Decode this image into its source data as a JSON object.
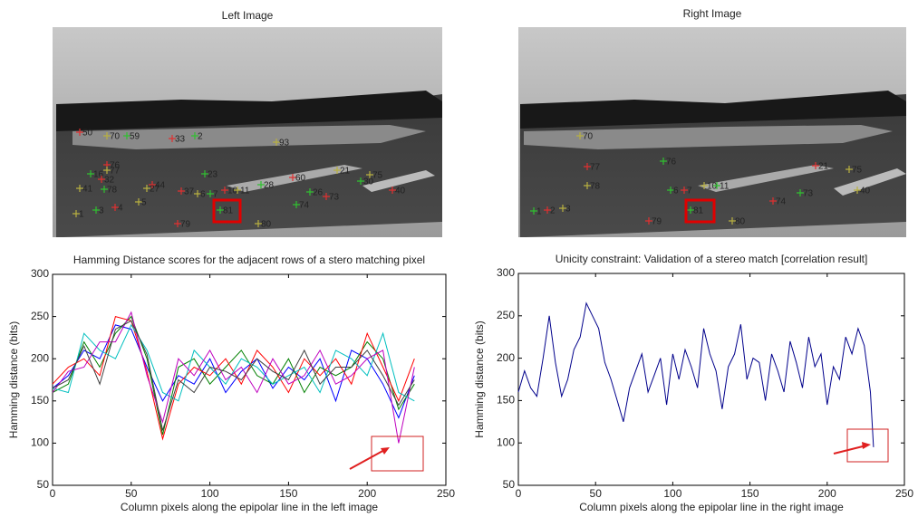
{
  "images": [
    {
      "title": "Left Image",
      "markers": [
        "50",
        "70",
        "59",
        "33",
        "93",
        "2",
        "76",
        "77",
        "16",
        "32",
        "41",
        "78",
        "44",
        "27",
        "23",
        "37",
        "6",
        "7",
        "10",
        "11",
        "28",
        "60",
        "21",
        "26",
        "73",
        "75",
        "30",
        "40",
        "1",
        "3",
        "4",
        "5",
        "81",
        "79",
        "80",
        "74"
      ]
    },
    {
      "title": "Right Image",
      "markers": [
        "70",
        "76",
        "77",
        "78",
        "6",
        "7",
        "10",
        "11",
        "21",
        "75",
        "73",
        "74",
        "40",
        "1",
        "2",
        "3",
        "81",
        "79",
        "80"
      ]
    }
  ],
  "chart_data": [
    {
      "type": "line",
      "title": "Hamming Distance scores for the adjacent rows of a stero matching pixel",
      "xlabel": "Column pixels along the epipolar line in the left image",
      "ylabel": "Hamming distance (bits)",
      "x": [
        0,
        10,
        20,
        30,
        40,
        50,
        60,
        70,
        80,
        90,
        100,
        110,
        120,
        130,
        140,
        150,
        160,
        170,
        180,
        190,
        200,
        210,
        220,
        230
      ],
      "series": [
        {
          "color": "#0000ff",
          "values": [
            165,
            180,
            210,
            200,
            240,
            235,
            190,
            150,
            180,
            170,
            200,
            160,
            185,
            200,
            165,
            190,
            175,
            200,
            150,
            210,
            200,
            170,
            130,
            180
          ]
        },
        {
          "color": "#008000",
          "values": [
            160,
            170,
            220,
            190,
            230,
            250,
            200,
            110,
            190,
            200,
            170,
            190,
            210,
            180,
            170,
            200,
            160,
            190,
            180,
            190,
            220,
            200,
            140,
            170
          ]
        },
        {
          "color": "#ff0000",
          "values": [
            170,
            190,
            200,
            180,
            250,
            245,
            185,
            105,
            170,
            190,
            180,
            200,
            170,
            210,
            190,
            160,
            200,
            180,
            200,
            170,
            230,
            190,
            150,
            200
          ]
        },
        {
          "color": "#00bfbf",
          "values": [
            165,
            160,
            230,
            210,
            200,
            240,
            210,
            160,
            150,
            210,
            190,
            170,
            200,
            190,
            170,
            180,
            190,
            160,
            210,
            200,
            180,
            230,
            160,
            150
          ]
        },
        {
          "color": "#bf00bf",
          "values": [
            160,
            185,
            190,
            220,
            220,
            255,
            180,
            125,
            200,
            180,
            210,
            175,
            190,
            160,
            200,
            170,
            180,
            210,
            170,
            180,
            200,
            210,
            100,
            190
          ]
        },
        {
          "color": "#404040",
          "values": [
            165,
            175,
            215,
            170,
            235,
            245,
            205,
            115,
            175,
            160,
            190,
            185,
            175,
            200,
            185,
            175,
            210,
            170,
            190,
            190,
            210,
            180,
            145,
            175
          ]
        }
      ],
      "xlim": [
        0,
        250
      ],
      "xticks": [
        0,
        50,
        100,
        150,
        200,
        250
      ],
      "ylim": [
        50,
        300
      ],
      "yticks": [
        50,
        100,
        150,
        200,
        250,
        300
      ]
    },
    {
      "type": "line",
      "title": "Unicity constraint: Validation of a stereo match [correlation result]",
      "xlabel": "Column pixels along the epipolar line in the right image",
      "ylabel": "Hamming distance (bits)",
      "x": [
        0,
        4,
        8,
        12,
        16,
        20,
        24,
        28,
        32,
        36,
        40,
        44,
        48,
        52,
        56,
        60,
        64,
        68,
        72,
        76,
        80,
        84,
        88,
        92,
        96,
        100,
        104,
        108,
        112,
        116,
        120,
        124,
        128,
        132,
        136,
        140,
        144,
        148,
        152,
        156,
        160,
        164,
        168,
        172,
        176,
        180,
        184,
        188,
        192,
        196,
        200,
        204,
        208,
        212,
        216,
        220,
        224,
        228,
        230
      ],
      "series": [
        {
          "color": "#00008b",
          "values": [
            160,
            185,
            165,
            155,
            200,
            250,
            195,
            155,
            175,
            210,
            225,
            265,
            250,
            235,
            195,
            175,
            150,
            125,
            165,
            185,
            205,
            160,
            180,
            200,
            145,
            205,
            175,
            210,
            190,
            165,
            235,
            205,
            185,
            140,
            190,
            205,
            240,
            175,
            200,
            195,
            150,
            205,
            185,
            160,
            220,
            195,
            165,
            225,
            190,
            205,
            145,
            190,
            175,
            225,
            205,
            235,
            215,
            160,
            95
          ]
        }
      ],
      "xlim": [
        0,
        250
      ],
      "xticks": [
        0,
        50,
        100,
        150,
        200,
        250
      ],
      "ylim": [
        50,
        300
      ],
      "yticks": [
        50,
        100,
        150,
        200,
        250,
        300
      ]
    }
  ]
}
